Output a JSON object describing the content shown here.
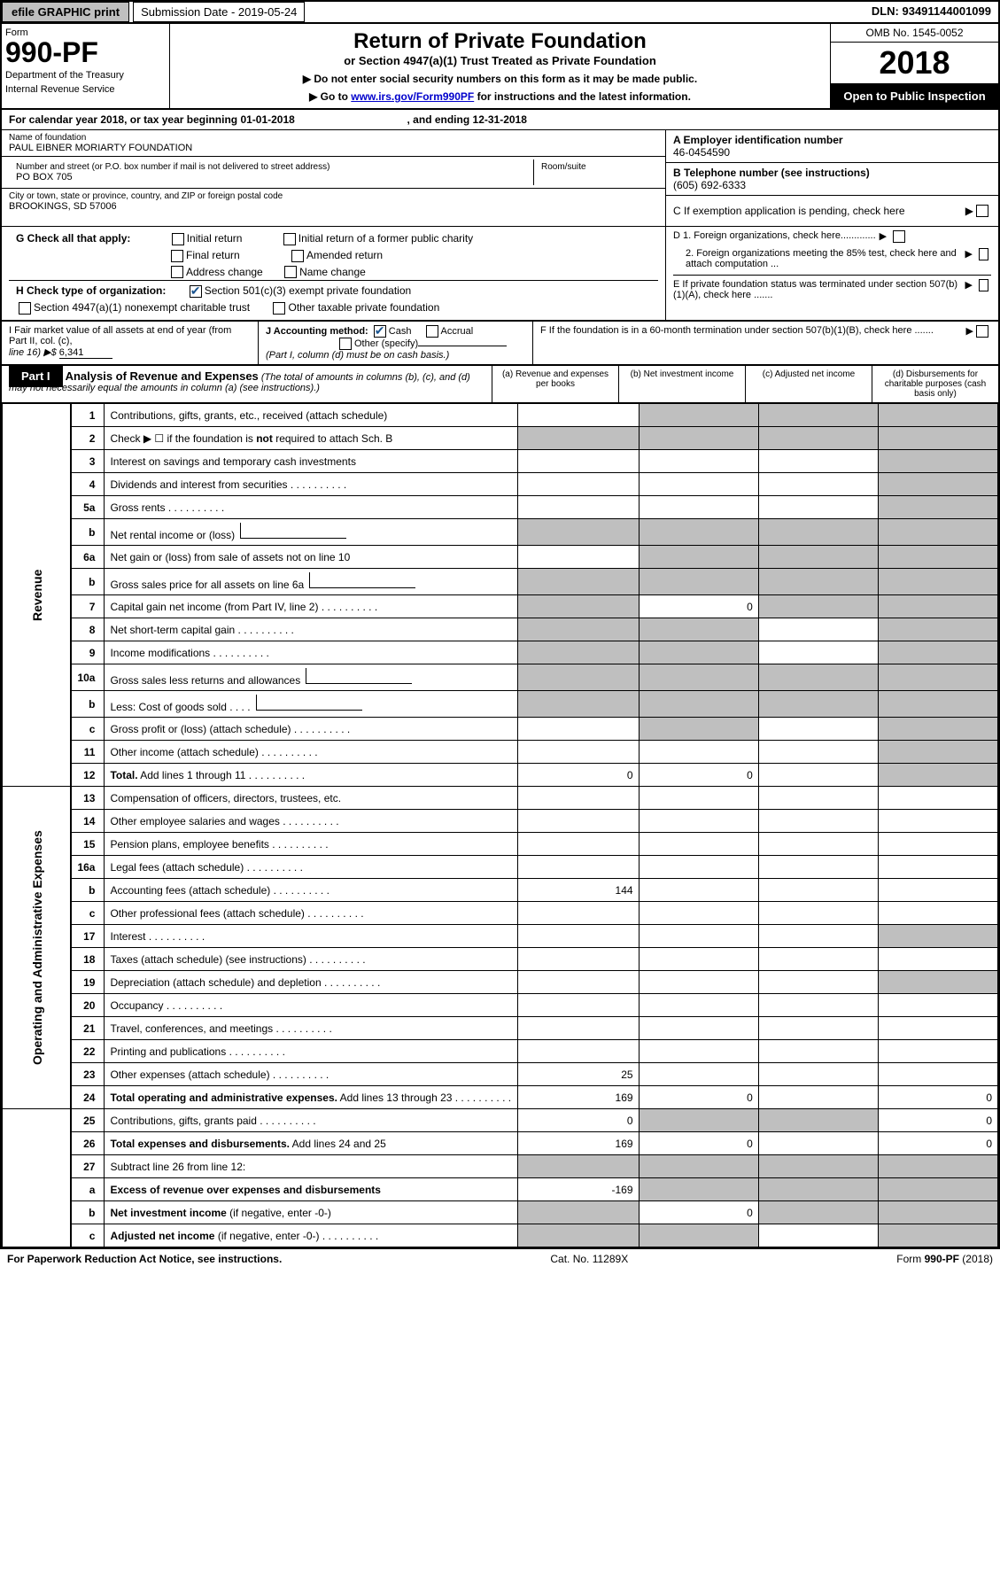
{
  "topbar": {
    "efile": "efile GRAPHIC print",
    "sub_label": "Submission Date - 2019-05-24",
    "dln": "DLN: 93491144001099"
  },
  "header": {
    "form_label": "Form",
    "form_num": "990-PF",
    "dept1": "Department of the Treasury",
    "dept2": "Internal Revenue Service",
    "title": "Return of Private Foundation",
    "subtitle": "or Section 4947(a)(1) Trust Treated as Private Foundation",
    "notice1": "▶ Do not enter social security numbers on this form as it may be made public.",
    "notice2_pre": "▶ Go to ",
    "notice2_link": "www.irs.gov/Form990PF",
    "notice2_post": " for instructions and the latest information.",
    "omb": "OMB No. 1545-0052",
    "year": "2018",
    "open": "Open to Public Inspection"
  },
  "calyear": {
    "pre": "For calendar year 2018, or tax year beginning 01-01-2018",
    "end": ", and ending 12-31-2018"
  },
  "foundation": {
    "name_lbl": "Name of foundation",
    "name": "PAUL EIBNER MORIARTY FOUNDATION",
    "addr_lbl": "Number and street (or P.O. box number if mail is not delivered to street address)",
    "addr": "PO BOX 705",
    "room_lbl": "Room/suite",
    "city_lbl": "City or town, state or province, country, and ZIP or foreign postal code",
    "city": "BROOKINGS, SD  57006"
  },
  "right_info": {
    "a_lbl": "A Employer identification number",
    "a_val": "46-0454590",
    "b_lbl": "B Telephone number (see instructions)",
    "b_val": "(605) 692-6333",
    "c_lbl": "C If exemption application is pending, check here",
    "d1": "D 1. Foreign organizations, check here.............",
    "d2": "2. Foreign organizations meeting the 85% test, check here and attach computation ...",
    "e": "E If private foundation status was terminated under section 507(b)(1)(A), check here .......",
    "f": "F If the foundation is in a 60-month termination under section 507(b)(1)(B), check here ......."
  },
  "g": {
    "label": "G Check all that apply:",
    "opts": [
      "Initial return",
      "Initial return of a former public charity",
      "Final return",
      "Amended return",
      "Address change",
      "Name change"
    ]
  },
  "h": {
    "label": "H Check type of organization:",
    "o1": "Section 501(c)(3) exempt private foundation",
    "o2": "Section 4947(a)(1) nonexempt charitable trust",
    "o3": "Other taxable private foundation"
  },
  "i": {
    "label": "I Fair market value of all assets at end of year (from Part II, col. (c),",
    "line16": "line 16) ▶$ ",
    "val": "6,341"
  },
  "j": {
    "label": "J Accounting method:",
    "cash": "Cash",
    "accrual": "Accrual",
    "other": "Other (specify)",
    "note": "(Part I, column (d) must be on cash basis.)"
  },
  "part1": {
    "tab": "Part I",
    "title": "Analysis of Revenue and Expenses",
    "desc": " (The total of amounts in columns (b), (c), and (d) may not necessarily equal the amounts in column (a) (see instructions).)",
    "col_a": "(a)    Revenue and expenses per books",
    "col_b": "(b)   Net investment income",
    "col_c": "(c)   Adjusted net income",
    "col_d": "(d)   Disbursements for charitable purposes (cash basis only)"
  },
  "side": {
    "rev": "Revenue",
    "exp": "Operating and Administrative Expenses"
  },
  "rows": {
    "1": "Contributions, gifts, grants, etc., received (attach schedule)",
    "2": "Check ▶ ☐ if the foundation is <b>not</b> required to attach Sch. B",
    "3": "Interest on savings and temporary cash investments",
    "4": "Dividends and interest from securities",
    "5a": "Gross rents",
    "5b": "Net rental income or (loss)",
    "6a": "Net gain or (loss) from sale of assets not on line 10",
    "6b": "Gross sales price for all assets on line 6a",
    "7": "Capital gain net income (from Part IV, line 2)",
    "8": "Net short-term capital gain",
    "9": "Income modifications",
    "10a": "Gross sales less returns and allowances",
    "10b": "Less: Cost of goods sold",
    "10c": "Gross profit or (loss) (attach schedule)",
    "11": "Other income (attach schedule)",
    "12": "<b>Total.</b> Add lines 1 through 11",
    "13": "Compensation of officers, directors, trustees, etc.",
    "14": "Other employee salaries and wages",
    "15": "Pension plans, employee benefits",
    "16a": "Legal fees (attach schedule)",
    "16b": "Accounting fees (attach schedule)",
    "16c": "Other professional fees (attach schedule)",
    "17": "Interest",
    "18": "Taxes (attach schedule) (see instructions)",
    "19": "Depreciation (attach schedule) and depletion",
    "20": "Occupancy",
    "21": "Travel, conferences, and meetings",
    "22": "Printing and publications",
    "23": "Other expenses (attach schedule)",
    "24": "<b>Total operating and administrative expenses.</b> Add lines 13 through 23",
    "25": "Contributions, gifts, grants paid",
    "26": "<b>Total expenses and disbursements.</b> Add lines 24 and 25",
    "27": "Subtract line 26 from line 12:",
    "27a": "<b>Excess of revenue over expenses and disbursements</b>",
    "27b": "<b>Net investment income</b> (if negative, enter -0-)",
    "27c": "<b>Adjusted net income</b> (if negative, enter -0-)"
  },
  "vals": {
    "7b": "0",
    "12a": "0",
    "12b": "0",
    "16b_a": "144",
    "23a": "25",
    "24a": "169",
    "24b": "0",
    "24d": "0",
    "25a": "0",
    "25d": "0",
    "26a": "169",
    "26b": "0",
    "26d": "0",
    "27a_a": "-169",
    "27b_b": "0"
  },
  "footer": {
    "left": "For Paperwork Reduction Act Notice, see instructions.",
    "mid": "Cat. No. 11289X",
    "right": "Form 990-PF (2018)"
  },
  "colors": {
    "grey": "#bfbfbf",
    "link": "#0000cc"
  }
}
